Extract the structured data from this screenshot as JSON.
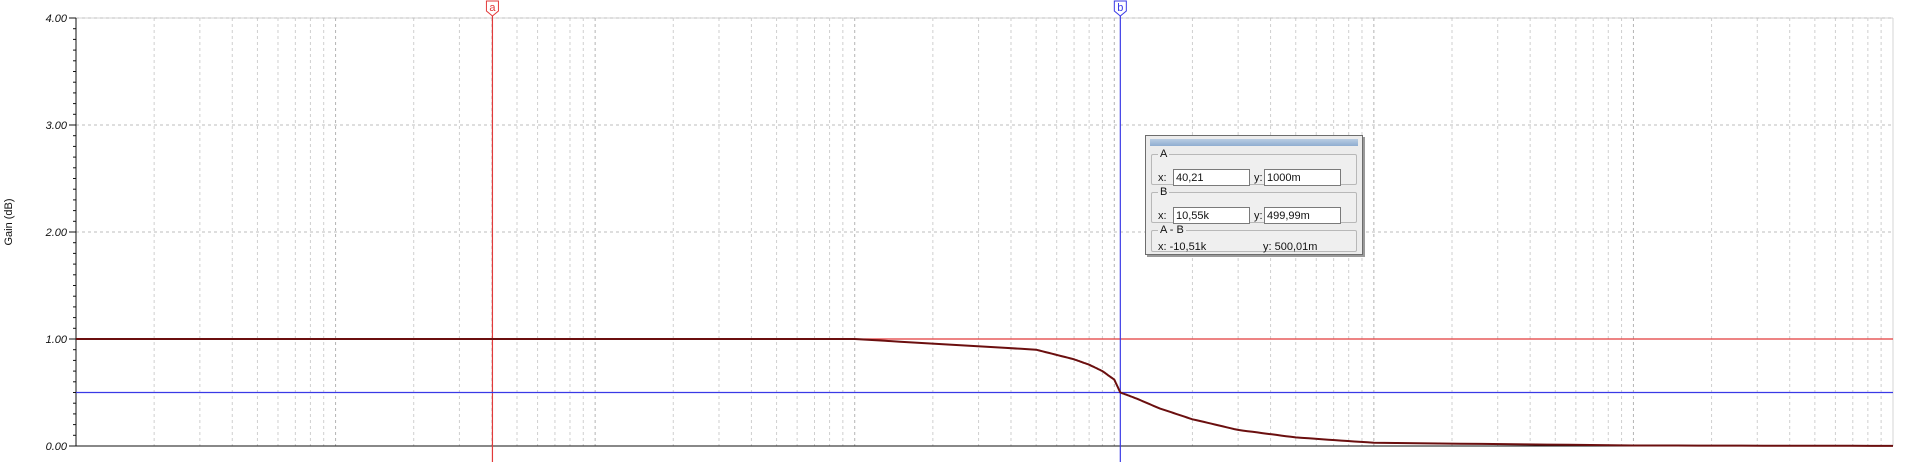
{
  "chart_data": {
    "type": "line",
    "ylabel": "Gain (dB)",
    "xscale": "log",
    "xlim": [
      1,
      10000000
    ],
    "ylim": [
      0,
      4
    ],
    "yticks": [
      "0.00",
      "1.00",
      "2.00",
      "3.00",
      "4.00"
    ],
    "grid": true,
    "series": [
      {
        "color": "#6b0f0f",
        "x": [
          1,
          10,
          100,
          1000,
          5000,
          7000,
          8000,
          9000,
          10000,
          10550,
          12000,
          15000,
          20000,
          30000,
          50000,
          100000,
          1000000,
          10000000
        ],
        "y": [
          1.0,
          1.0,
          1.0,
          1.0,
          0.9,
          0.81,
          0.76,
          0.7,
          0.62,
          0.5,
          0.45,
          0.35,
          0.25,
          0.15,
          0.08,
          0.03,
          0.005,
          0.001
        ]
      }
    ],
    "cursors": [
      {
        "label": "a",
        "color": "#e23a3a",
        "x": 40.21,
        "y": 1.0
      },
      {
        "label": "b",
        "color": "#3a3ae6",
        "x": 10550,
        "y": 0.49999
      }
    ]
  },
  "readout": {
    "a": {
      "title": "A",
      "x_label": "x:",
      "x_value": "40,21",
      "y_label": "y:",
      "y_value": "1000m"
    },
    "b": {
      "title": "B",
      "x_label": "x:",
      "x_value": "10,55k",
      "y_label": "y:",
      "y_value": "499,99m"
    },
    "diff": {
      "title": "A - B",
      "x_text": "x:  -10,51k",
      "y_text": "y: 500,01m"
    }
  }
}
